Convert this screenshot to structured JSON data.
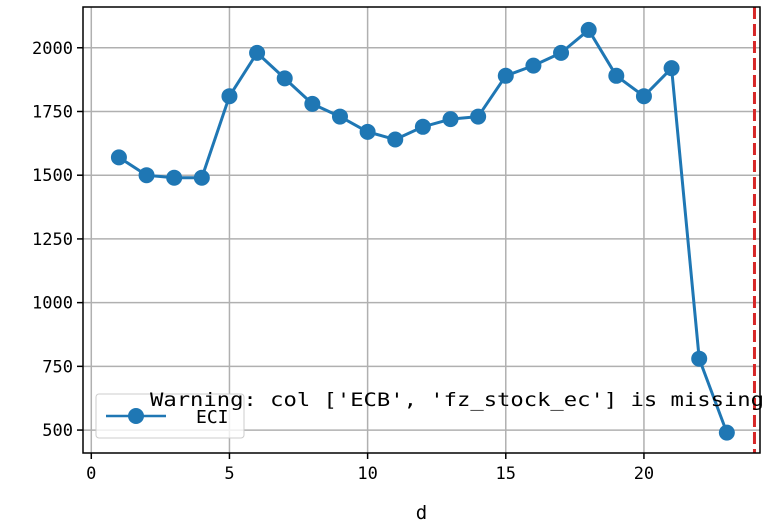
{
  "chart_data": {
    "type": "line",
    "xlabel": "d",
    "ylabel": "",
    "xlim": [
      -0.3,
      24.2
    ],
    "ylim": [
      410,
      2160
    ],
    "xticks": [
      0,
      5,
      10,
      15,
      20
    ],
    "yticks": [
      500,
      750,
      1000,
      1250,
      1500,
      1750,
      2000
    ],
    "grid": true,
    "legend_placement": "lower-left",
    "series": [
      {
        "name": "ECI",
        "color": "#1f77b4",
        "marker": "circle",
        "x": [
          1,
          2,
          3,
          4,
          5,
          6,
          7,
          8,
          9,
          10,
          11,
          12,
          13,
          14,
          15,
          16,
          17,
          18,
          19,
          20,
          21,
          22,
          23
        ],
        "y": [
          1570,
          1500,
          1490,
          1490,
          1810,
          1980,
          1880,
          1780,
          1730,
          1670,
          1640,
          1690,
          1720,
          1730,
          1890,
          1930,
          1980,
          2070,
          1890,
          1810,
          1920,
          780,
          490
        ]
      }
    ],
    "vline": {
      "x": 24,
      "color": "#d62728",
      "style": "dashed"
    },
    "annotation": "Warning: col ['ECB', 'fz_stock_ec'] is missing"
  }
}
